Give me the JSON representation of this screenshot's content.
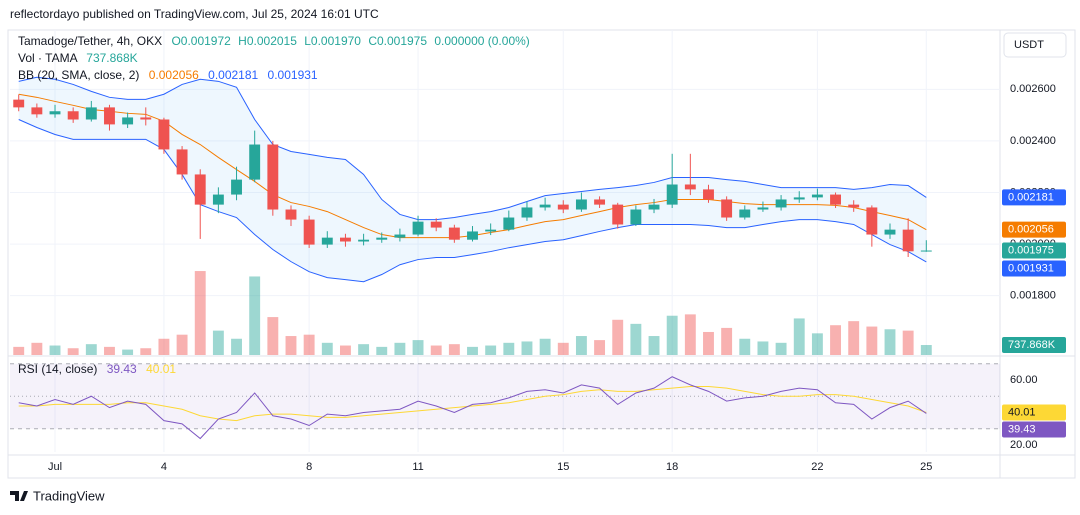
{
  "header": {
    "published": "reflectordayo published on TradingView.com, Jul 25, 2024 16:01 UTC",
    "currency": "USDT",
    "brand": "TradingView"
  },
  "chart_data": {
    "type": "candlestick",
    "legend": {
      "symbol": "Tamadoge/Tether, 4h, OKX",
      "ohlc": [
        "O0.001972",
        "H0.002015",
        "L0.001970",
        "C0.001975"
      ],
      "change": "0.000000 (0.00%)"
    },
    "colors": {
      "up": "#26a69a",
      "down": "#ef5350"
    },
    "x": [
      0,
      0.5,
      1,
      1.5,
      2,
      2.5,
      3,
      3.5,
      4,
      4.5,
      5,
      5.5,
      6,
      6.5,
      7,
      7.5,
      8,
      8.5,
      9,
      9.5,
      10,
      10.5,
      11,
      11.5,
      12,
      12.5,
      13,
      13.5,
      14,
      14.5,
      15,
      15.5,
      16,
      16.5,
      17,
      17.5,
      18,
      18.5,
      19,
      19.5,
      20,
      20.5,
      21,
      21.5,
      22,
      22.5,
      23,
      23.5,
      24,
      24.5,
      25
    ],
    "xlim": [
      -0.24,
      27.03
    ],
    "xticks": [
      {
        "value": 1,
        "label": "Jul"
      },
      4,
      8,
      11,
      15,
      18,
      22,
      25
    ],
    "ylim": [
      0.00157,
      0.00283
    ],
    "yticks": [
      {
        "value": 0.0026,
        "label": "0.002600"
      },
      {
        "value": 0.0024,
        "label": "0.002400"
      },
      {
        "value": 0.0022,
        "label": "0.002200"
      },
      {
        "value": 0.002,
        "label": "0.002000"
      },
      {
        "value": 0.0018,
        "label": "0.001800"
      }
    ],
    "grid": true,
    "open": [
      0.00256,
      0.00253,
      0.002503,
      0.002515,
      0.002483,
      0.00253,
      0.002464,
      0.002491,
      0.002483,
      0.002367,
      0.00227,
      0.002153,
      0.002192,
      0.00225,
      0.002386,
      0.002134,
      0.002095,
      0.001998,
      0.002025,
      0.00201,
      0.002017,
      0.002025,
      0.002037,
      0.002087,
      0.002064,
      0.002017,
      0.002049,
      0.002056,
      0.002103,
      0.002142,
      0.002153,
      0.002134,
      0.002173,
      0.002153,
      0.002076,
      0.002134,
      0.002153,
      0.002231,
      0.002212,
      0.002173,
      0.002103,
      0.002134,
      0.002142,
      0.002173,
      0.002181,
      0.002192,
      0.002153,
      0.002142,
      0.002037,
      0.002056,
      0.001972
    ],
    "high": [
      0.00258,
      0.002545,
      0.00254,
      0.00253,
      0.002555,
      0.00254,
      0.00251,
      0.00253,
      0.00249,
      0.00238,
      0.00229,
      0.00222,
      0.0023,
      0.00244,
      0.0024,
      0.00215,
      0.00211,
      0.00205,
      0.00204,
      0.00204,
      0.002045,
      0.00206,
      0.00211,
      0.0021,
      0.002075,
      0.00207,
      0.00208,
      0.00213,
      0.002165,
      0.00218,
      0.00217,
      0.0022,
      0.002185,
      0.00216,
      0.00215,
      0.002175,
      0.00235,
      0.00235,
      0.00223,
      0.002185,
      0.00215,
      0.002165,
      0.00219,
      0.002205,
      0.002215,
      0.0022,
      0.00217,
      0.00215,
      0.00208,
      0.0021,
      0.002015
    ],
    "low": [
      0.002515,
      0.00249,
      0.00249,
      0.00247,
      0.002475,
      0.00244,
      0.00245,
      0.00246,
      0.00235,
      0.00225,
      0.00202,
      0.00212,
      0.00217,
      0.00224,
      0.00211,
      0.00207,
      0.001985,
      0.001985,
      0.00199,
      0.001995,
      0.002005,
      0.00201,
      0.00203,
      0.00205,
      0.002005,
      0.00201,
      0.002035,
      0.00205,
      0.00209,
      0.00213,
      0.00212,
      0.002125,
      0.00214,
      0.00206,
      0.00207,
      0.00212,
      0.00214,
      0.00219,
      0.00216,
      0.00209,
      0.002095,
      0.002125,
      0.00213,
      0.00216,
      0.00217,
      0.00214,
      0.002125,
      0.00199,
      0.00202,
      0.00195,
      0.00197
    ],
    "close": [
      0.00253,
      0.002503,
      0.002515,
      0.002483,
      0.00253,
      0.002464,
      0.002491,
      0.002483,
      0.002367,
      0.00227,
      0.002153,
      0.002192,
      0.00225,
      0.002386,
      0.002134,
      0.002095,
      0.001998,
      0.002025,
      0.00201,
      0.002017,
      0.002025,
      0.002037,
      0.002087,
      0.002064,
      0.002017,
      0.002049,
      0.002056,
      0.002103,
      0.002142,
      0.002153,
      0.002134,
      0.002173,
      0.002153,
      0.002076,
      0.002134,
      0.002153,
      0.002231,
      0.002212,
      0.002173,
      0.002103,
      0.002134,
      0.002142,
      0.002173,
      0.002181,
      0.002192,
      0.002153,
      0.002142,
      0.002037,
      0.002056,
      0.001972,
      0.001975
    ],
    "volume": {
      "name": "Vol · TAMA",
      "ylim": [
        0,
        24000
      ],
      "last_label": "737.868K",
      "values": [
        600,
        900,
        700,
        500,
        800,
        600,
        400,
        500,
        1200,
        1500,
        6200,
        1800,
        1200,
        5800,
        2800,
        1400,
        1500,
        900,
        700,
        800,
        600,
        900,
        1100,
        700,
        800,
        600,
        700,
        900,
        1000,
        1200,
        900,
        1400,
        1100,
        2600,
        2300,
        1400,
        2900,
        3000,
        1700,
        2000,
        1200,
        1000,
        900,
        2700,
        1600,
        2200,
        2500,
        2100,
        1900,
        1800,
        737.868
      ]
    },
    "bb": {
      "label": "BB (20, SMA, close, 2)",
      "basis": {
        "color": "#f57c00",
        "values": [
          0.002581,
          0.002569,
          0.002553,
          0.002538,
          0.002522,
          0.002515,
          0.002507,
          0.002503,
          0.002476,
          0.002425,
          0.002386,
          0.002336,
          0.002289,
          0.002243,
          0.002192,
          0.002161,
          0.002146,
          0.002126,
          0.002095,
          0.002064,
          0.002037,
          0.002025,
          0.002025,
          0.002025,
          0.002025,
          0.002033,
          0.002045,
          0.002056,
          0.002072,
          0.002087,
          0.002095,
          0.002111,
          0.002126,
          0.002142,
          0.002153,
          0.002161,
          0.002173,
          0.002173,
          0.002173,
          0.002165,
          0.002157,
          0.002153,
          0.002153,
          0.002153,
          0.002153,
          0.00215,
          0.002142,
          0.002126,
          0.002111,
          0.002095,
          0.002056
        ]
      },
      "upper": {
        "color": "#2962ff",
        "values": [
          0.002631,
          0.002647,
          0.002639,
          0.002619,
          0.002592,
          0.002569,
          0.002561,
          0.002561,
          0.002581,
          0.002619,
          0.002639,
          0.002631,
          0.002608,
          0.002483,
          0.002386,
          0.002359,
          0.002348,
          0.002336,
          0.002328,
          0.00227,
          0.002173,
          0.002115,
          0.002095,
          0.002095,
          0.002103,
          0.002115,
          0.002126,
          0.002142,
          0.002165,
          0.002188,
          0.002196,
          0.002204,
          0.002212,
          0.002219,
          0.002227,
          0.002239,
          0.002258,
          0.002258,
          0.002258,
          0.00225,
          0.002243,
          0.002231,
          0.002219,
          0.002219,
          0.002219,
          0.002219,
          0.002212,
          0.002219,
          0.002231,
          0.002227,
          0.002181
        ]
      },
      "lower": {
        "color": "#2962ff",
        "values": [
          0.002483,
          0.002452,
          0.002425,
          0.002406,
          0.002406,
          0.002406,
          0.002406,
          0.002406,
          0.002367,
          0.00227,
          0.002153,
          0.002126,
          0.002103,
          0.002037,
          0.001979,
          0.001932,
          0.001893,
          0.00187,
          0.001862,
          0.001854,
          0.001882,
          0.00192,
          0.00194,
          0.001948,
          0.001948,
          0.001959,
          0.001971,
          0.001986,
          0.001998,
          0.00201,
          0.002017,
          0.002033,
          0.002049,
          0.002064,
          0.002076,
          0.002076,
          0.002076,
          0.002076,
          0.002072,
          0.002064,
          0.002064,
          0.002076,
          0.002087,
          0.002095,
          0.002095,
          0.002087,
          0.002076,
          0.002037,
          0.001998,
          0.001971,
          0.001931
        ]
      }
    },
    "rsi": {
      "label": "RSI (14, close)",
      "color": "#7e57c2",
      "ylim": [
        15.7,
        72.3
      ],
      "yticks": [
        {
          "value": 60,
          "label": "60.00"
        },
        {
          "value": 20,
          "label": "20.00"
        }
      ],
      "levels": [
        70,
        50,
        30
      ],
      "values": [
        46,
        44,
        48,
        45,
        50,
        43,
        47,
        45,
        35,
        33,
        24,
        36,
        40,
        52,
        38,
        36,
        32,
        39,
        38,
        40,
        41,
        42,
        47,
        44,
        40,
        45,
        46,
        49,
        53,
        54,
        52,
        57,
        55,
        45,
        52,
        55,
        62,
        57,
        53,
        47,
        49,
        50,
        53,
        55,
        54,
        46,
        45,
        36,
        43,
        47,
        39.43
      ],
      "ma": {
        "color": "#fdd835",
        "values": [
          44,
          44,
          45,
          45,
          45,
          45,
          46,
          46,
          44,
          42,
          38,
          36,
          35,
          38,
          39,
          39,
          38,
          37,
          37,
          38,
          39,
          40,
          41,
          42,
          43,
          44,
          45,
          46,
          48,
          50,
          51,
          53,
          54,
          53,
          53,
          54,
          55,
          56,
          56,
          55,
          53,
          51,
          50,
          50,
          51,
          51,
          50,
          48,
          46,
          44,
          40.01
        ]
      }
    }
  }
}
